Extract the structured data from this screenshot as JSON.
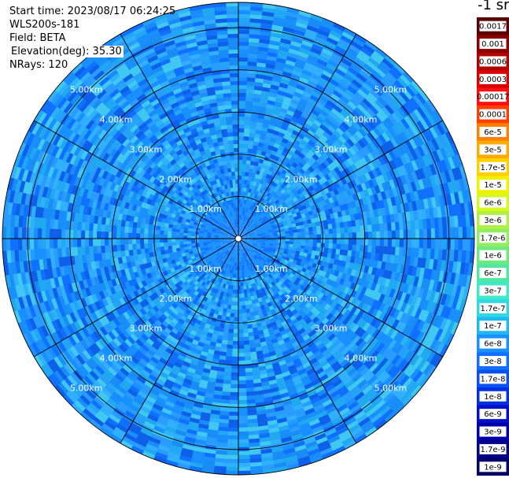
{
  "info": {
    "start_time": "Start time: 2023/08/17 06:24:25",
    "instrument": "WLS200s-181",
    "field": "Field: BETA",
    "elevation": "Elevation(deg): 35.30",
    "nrays": "NRays: 120"
  },
  "colorbar": {
    "unit": "-1 sr",
    "labels": [
      "0.0017",
      "0.001",
      "0.0006",
      "0.0003",
      "0.00017",
      "0.0001",
      "6e-5",
      "3e-5",
      "1.7e-5",
      "1e-5",
      "6e-6",
      "3e-6",
      "1.7e-6",
      "1e-6",
      "6e-7",
      "3e-7",
      "1.7e-7",
      "1e-7",
      "6e-8",
      "3e-8",
      "1.7e-8",
      "1e-8",
      "6e-9",
      "3e-9",
      "1.7e-9",
      "1e-9"
    ],
    "colors": [
      "#5a0000",
      "#8b0000",
      "#b00000",
      "#d80000",
      "#ff1010",
      "#ff4000",
      "#ff8000",
      "#ffaa00",
      "#ffd000",
      "#f0f000",
      "#d4f820",
      "#b0f040",
      "#90ee60",
      "#70e880",
      "#50e8a0",
      "#40e8c8",
      "#30d8e0",
      "#20b8f0",
      "#1890ff",
      "#1070ff",
      "#0850f0",
      "#0030e0",
      "#0010c8",
      "#0000a8",
      "#000088",
      "#000066"
    ]
  },
  "chart_data": {
    "type": "heatmap",
    "projection": "polar",
    "field": "BETA",
    "nrays": 120,
    "range_rings_km": [
      1.0,
      2.0,
      3.0,
      4.0,
      5.0
    ],
    "ring_labels": [
      "1.00km",
      "2.00km",
      "3.00km",
      "4.00km",
      "5.00km"
    ],
    "max_range_km": 5.6,
    "spoke_angles_deg": [
      0,
      30,
      60,
      90,
      120,
      150,
      180,
      210,
      240,
      270,
      300,
      330
    ],
    "value_range": [
      1e-09,
      0.0017
    ],
    "dominant_color": "#1890ff"
  }
}
